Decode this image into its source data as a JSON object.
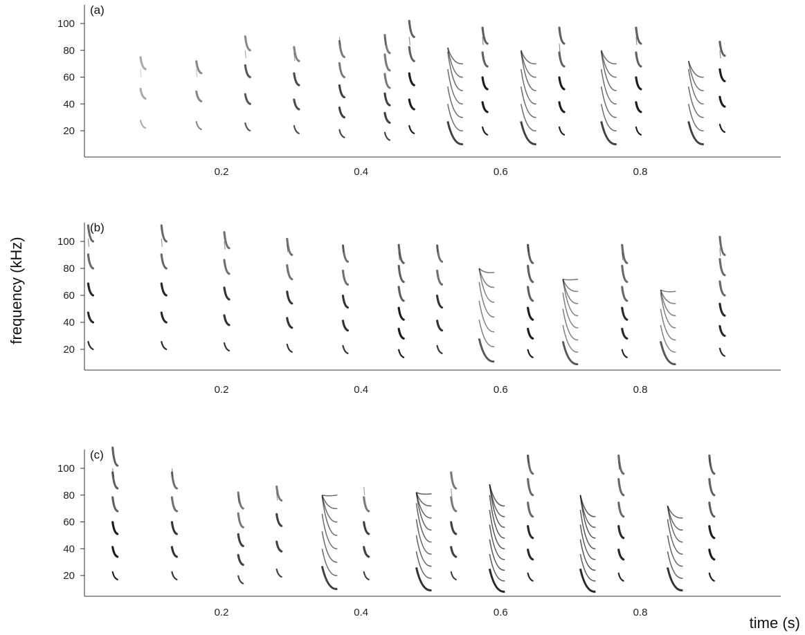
{
  "figure": {
    "ylabel": "frequency  (kHz)",
    "xlabel": "time (s)"
  },
  "colors": {
    "ink": "#111111",
    "axis": "#333333",
    "background": "#ffffff"
  },
  "chart_data": [
    {
      "type": "heatmap",
      "panel": "(a)",
      "x_ticks": [
        "0.2",
        "0.4",
        "0.6",
        "0.8"
      ],
      "y_ticks": [
        "20",
        "40",
        "60",
        "80",
        "100"
      ],
      "xlim": [
        0,
        1.0
      ],
      "ylim": [
        4,
        114
      ],
      "grid": false,
      "calls": [
        {
          "t": 0.085,
          "fundamental": 22,
          "harmonics": 3,
          "top": 66,
          "intensity": 0.35
        },
        {
          "t": 0.165,
          "fundamental": 21,
          "harmonics": 3,
          "top": 66,
          "intensity": 0.5
        },
        {
          "t": 0.235,
          "fundamental": 20,
          "harmonics": 4,
          "top": 80,
          "intensity": 0.7
        },
        {
          "t": 0.305,
          "fundamental": 18,
          "harmonics": 4,
          "top": 78,
          "intensity": 0.75
        },
        {
          "t": 0.37,
          "fundamental": 15,
          "harmonics": 5,
          "top": 90,
          "intensity": 0.8
        },
        {
          "t": 0.435,
          "fundamental": 13,
          "harmonics": 6,
          "top": 90,
          "intensity": 0.8
        },
        {
          "t": 0.47,
          "fundamental": 18,
          "harmonics": 5,
          "top": 90,
          "intensity": 0.95
        },
        {
          "t": 0.54,
          "fundamental": 10,
          "harmonics": 7,
          "top": 82,
          "intensity": 0.8,
          "sweep": true
        },
        {
          "t": 0.575,
          "fundamental": 17,
          "harmonics": 5,
          "top": 90,
          "intensity": 0.95
        },
        {
          "t": 0.645,
          "fundamental": 10,
          "harmonics": 7,
          "top": 80,
          "intensity": 0.8,
          "sweep": true
        },
        {
          "t": 0.685,
          "fundamental": 17,
          "harmonics": 5,
          "top": 85,
          "intensity": 0.95
        },
        {
          "t": 0.76,
          "fundamental": 10,
          "harmonics": 7,
          "top": 80,
          "intensity": 0.8,
          "sweep": true
        },
        {
          "t": 0.795,
          "fundamental": 17,
          "harmonics": 5,
          "top": 90,
          "intensity": 0.95
        },
        {
          "t": 0.885,
          "fundamental": 10,
          "harmonics": 6,
          "top": 72,
          "intensity": 0.8,
          "sweep": true
        },
        {
          "t": 0.915,
          "fundamental": 19,
          "harmonics": 4,
          "top": 80,
          "intensity": 0.95
        }
      ]
    },
    {
      "type": "heatmap",
      "panel": "(b)",
      "x_ticks": [
        "0.2",
        "0.4",
        "0.6",
        "0.8"
      ],
      "y_ticks": [
        "20",
        "40",
        "60",
        "80",
        "100"
      ],
      "xlim": [
        0,
        1.0
      ],
      "ylim": [
        4,
        114
      ],
      "grid": false,
      "calls": [
        {
          "t": 0.01,
          "fundamental": 20,
          "harmonics": 5,
          "top": 102,
          "intensity": 0.9
        },
        {
          "t": 0.115,
          "fundamental": 20,
          "harmonics": 5,
          "top": 102,
          "intensity": 0.9
        },
        {
          "t": 0.205,
          "fundamental": 19,
          "harmonics": 5,
          "top": 100,
          "intensity": 0.85
        },
        {
          "t": 0.295,
          "fundamental": 18,
          "harmonics": 5,
          "top": 98,
          "intensity": 0.85
        },
        {
          "t": 0.375,
          "fundamental": 17,
          "harmonics": 5,
          "top": 98,
          "intensity": 0.85
        },
        {
          "t": 0.455,
          "fundamental": 14,
          "harmonics": 6,
          "top": 92,
          "intensity": 0.95
        },
        {
          "t": 0.51,
          "fundamental": 17,
          "harmonics": 5,
          "top": 98,
          "intensity": 0.85
        },
        {
          "t": 0.585,
          "fundamental": 11,
          "harmonics": 7,
          "top": 80,
          "intensity": 0.7,
          "sweep": true
        },
        {
          "t": 0.64,
          "fundamental": 14,
          "harmonics": 6,
          "top": 98,
          "intensity": 0.95
        },
        {
          "t": 0.705,
          "fundamental": 9,
          "harmonics": 8,
          "top": 72,
          "intensity": 0.7,
          "sweep": true
        },
        {
          "t": 0.775,
          "fundamental": 14,
          "harmonics": 6,
          "top": 92,
          "intensity": 0.9
        },
        {
          "t": 0.845,
          "fundamental": 9,
          "harmonics": 7,
          "top": 64,
          "intensity": 0.7,
          "sweep": true
        },
        {
          "t": 0.915,
          "fundamental": 15,
          "harmonics": 6,
          "top": 95,
          "intensity": 0.9
        }
      ]
    },
    {
      "type": "heatmap",
      "panel": "(c)",
      "x_ticks": [
        "0.2",
        "0.4",
        "0.6",
        "0.8"
      ],
      "y_ticks": [
        "20",
        "40",
        "60",
        "80",
        "100"
      ],
      "xlim": [
        0,
        1.0
      ],
      "ylim": [
        4,
        114
      ],
      "grid": false,
      "calls": [
        {
          "t": 0.045,
          "fundamental": 17,
          "harmonics": 6,
          "top": 100,
          "intensity": 0.95
        },
        {
          "t": 0.13,
          "fundamental": 17,
          "harmonics": 5,
          "top": 100,
          "intensity": 0.85
        },
        {
          "t": 0.225,
          "fundamental": 14,
          "harmonics": 5,
          "top": 80,
          "intensity": 0.8
        },
        {
          "t": 0.28,
          "fundamental": 19,
          "harmonics": 4,
          "top": 82,
          "intensity": 0.8
        },
        {
          "t": 0.36,
          "fundamental": 10,
          "harmonics": 8,
          "top": 80,
          "intensity": 0.8,
          "sweep": true
        },
        {
          "t": 0.405,
          "fundamental": 17,
          "harmonics": 4,
          "top": 86,
          "intensity": 0.8
        },
        {
          "t": 0.495,
          "fundamental": 9,
          "harmonics": 9,
          "top": 82,
          "intensity": 0.85,
          "sweep": true
        },
        {
          "t": 0.53,
          "fundamental": 17,
          "harmonics": 5,
          "top": 85,
          "intensity": 0.8
        },
        {
          "t": 0.6,
          "fundamental": 8,
          "harmonics": 9,
          "top": 88,
          "intensity": 0.9,
          "sweep": true
        },
        {
          "t": 0.64,
          "fundamental": 16,
          "harmonics": 6,
          "top": 110,
          "intensity": 0.9
        },
        {
          "t": 0.73,
          "fundamental": 8,
          "harmonics": 8,
          "top": 80,
          "intensity": 0.9,
          "sweep": true
        },
        {
          "t": 0.77,
          "fundamental": 16,
          "harmonics": 6,
          "top": 105,
          "intensity": 0.9
        },
        {
          "t": 0.855,
          "fundamental": 9,
          "harmonics": 7,
          "top": 72,
          "intensity": 0.85,
          "sweep": true
        },
        {
          "t": 0.9,
          "fundamental": 16,
          "harmonics": 6,
          "top": 108,
          "intensity": 0.95
        }
      ]
    }
  ]
}
